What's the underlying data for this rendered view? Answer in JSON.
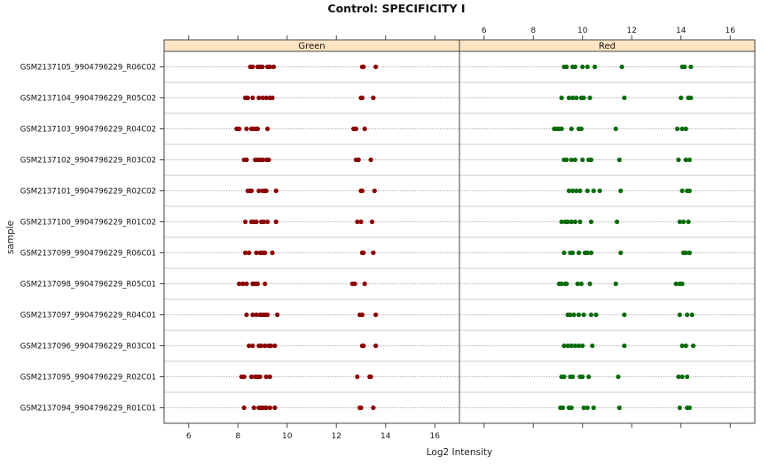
{
  "chart_data": {
    "type": "scatter",
    "title": "Control: SPECIFICITY I",
    "xlabel": "Log2 Intensity",
    "ylabel": "sample",
    "xlim": [
      5,
      17
    ],
    "xticks": [
      6,
      8,
      10,
      12,
      14,
      16
    ],
    "xtick_labels": [
      "6",
      "8",
      "10",
      "12",
      "14",
      "16"
    ],
    "grid": false,
    "panels": [
      {
        "name": "Green",
        "color": "#8b0000"
      },
      {
        "name": "Red",
        "color": "#0a6b0a"
      }
    ],
    "samples": [
      "GSM2137105_9904796229_R06C02",
      "GSM2137104_9904796229_R05C02",
      "GSM2137103_9904796229_R04C02",
      "GSM2137102_9904796229_R03C02",
      "GSM2137101_9904796229_R02C02",
      "GSM2137100_9904796229_R01C02",
      "GSM2137099_9904796229_R06C01",
      "GSM2137098_9904796229_R05C01",
      "GSM2137097_9904796229_R04C01",
      "GSM2137096_9904796229_R03C01",
      "GSM2137095_9904796229_R02C01",
      "GSM2137094_9904796229_R01C01"
    ],
    "series": [
      {
        "name": "Green",
        "values": [
          [
            8.5,
            8.6,
            8.8,
            8.9,
            9.0,
            9.2,
            9.3,
            9.45,
            13.05,
            13.1,
            13.6
          ],
          [
            8.3,
            8.4,
            8.6,
            8.85,
            9.0,
            9.15,
            9.3,
            9.4,
            13.0,
            13.05,
            13.5
          ],
          [
            7.95,
            8.05,
            8.35,
            8.55,
            8.65,
            8.75,
            8.8,
            9.2,
            12.7,
            12.8,
            13.15
          ],
          [
            8.25,
            8.35,
            8.7,
            8.8,
            8.9,
            9.0,
            9.15,
            9.25,
            12.8,
            12.9,
            13.4
          ],
          [
            8.4,
            8.5,
            8.55,
            8.85,
            9.0,
            9.1,
            9.15,
            9.55,
            13.0,
            13.05,
            13.55
          ],
          [
            8.3,
            8.55,
            8.65,
            8.75,
            8.95,
            9.05,
            9.2,
            9.55,
            12.85,
            13.0,
            13.45
          ],
          [
            8.3,
            8.45,
            8.75,
            8.9,
            8.95,
            9.05,
            9.1,
            9.4,
            13.05,
            13.1,
            13.5
          ],
          [
            8.05,
            8.2,
            8.35,
            8.6,
            8.65,
            8.75,
            8.8,
            9.1,
            12.65,
            12.75,
            13.15
          ],
          [
            8.35,
            8.6,
            8.75,
            8.9,
            9.0,
            9.1,
            9.2,
            9.6,
            12.95,
            13.05,
            13.6
          ],
          [
            8.45,
            8.6,
            8.85,
            8.95,
            9.1,
            9.25,
            9.35,
            9.5,
            13.05,
            13.1,
            13.6
          ],
          [
            8.15,
            8.25,
            8.55,
            8.7,
            8.8,
            8.9,
            9.15,
            9.3,
            12.85,
            13.35,
            13.4
          ],
          [
            8.25,
            8.65,
            8.85,
            8.95,
            9.05,
            9.15,
            9.3,
            9.5,
            12.95,
            13.0,
            13.5
          ]
        ]
      },
      {
        "name": "Red",
        "values": [
          [
            9.25,
            9.35,
            9.6,
            9.7,
            10.0,
            10.2,
            10.5,
            11.6,
            14.05,
            14.15,
            14.4
          ],
          [
            9.15,
            9.45,
            9.6,
            9.75,
            9.95,
            10.05,
            10.3,
            11.7,
            14.0,
            14.3,
            14.4
          ],
          [
            8.85,
            8.95,
            9.05,
            9.15,
            9.55,
            9.85,
            9.95,
            11.35,
            13.85,
            14.05,
            14.2
          ],
          [
            9.25,
            9.35,
            9.55,
            9.7,
            10.0,
            10.25,
            10.35,
            11.5,
            13.9,
            14.2,
            14.35
          ],
          [
            9.45,
            9.6,
            9.75,
            9.9,
            10.2,
            10.45,
            10.7,
            11.55,
            14.05,
            14.25,
            14.35
          ],
          [
            9.15,
            9.3,
            9.4,
            9.55,
            9.7,
            9.9,
            10.35,
            11.4,
            13.95,
            14.1,
            14.3
          ],
          [
            9.25,
            9.5,
            9.6,
            9.85,
            10.1,
            10.2,
            10.35,
            11.55,
            14.1,
            14.2,
            14.35
          ],
          [
            9.05,
            9.15,
            9.3,
            9.35,
            9.8,
            9.95,
            10.3,
            11.35,
            13.8,
            13.95,
            14.05
          ],
          [
            9.4,
            9.5,
            9.65,
            9.85,
            10.05,
            10.35,
            10.55,
            11.7,
            13.95,
            14.25,
            14.45
          ],
          [
            9.25,
            9.4,
            9.55,
            9.7,
            9.85,
            10.0,
            10.4,
            11.7,
            14.05,
            14.2,
            14.5
          ],
          [
            9.15,
            9.25,
            9.5,
            9.6,
            9.9,
            10.0,
            10.25,
            11.45,
            13.9,
            14.05,
            14.25
          ],
          [
            9.1,
            9.2,
            9.45,
            9.55,
            10.05,
            10.2,
            10.45,
            11.5,
            13.95,
            14.25,
            14.35
          ]
        ]
      }
    ]
  }
}
